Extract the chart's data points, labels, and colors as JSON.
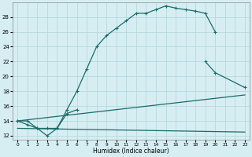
{
  "xlabel": "Humidex (Indice chaleur)",
  "bg_color": "#d6eef2",
  "grid_color": "#b8d8de",
  "line_color": "#1a6b6b",
  "xlim": [
    -0.5,
    23.5
  ],
  "ylim": [
    11.5,
    30
  ],
  "xticks": [
    0,
    1,
    2,
    3,
    4,
    5,
    6,
    7,
    8,
    9,
    10,
    11,
    12,
    13,
    14,
    15,
    16,
    17,
    18,
    19,
    20,
    21,
    22,
    23
  ],
  "yticks": [
    12,
    14,
    16,
    18,
    20,
    22,
    24,
    26,
    28
  ],
  "line1_x": [
    0,
    1,
    2,
    3,
    4,
    5,
    6,
    7,
    8,
    9,
    10,
    11,
    12,
    13,
    14,
    15,
    16,
    17,
    18,
    19,
    20
  ],
  "line1_y": [
    14,
    13.5,
    13,
    12,
    13,
    15.5,
    18,
    21,
    24,
    25.5,
    26.5,
    27.5,
    28.5,
    28.5,
    29,
    29.5,
    29.2,
    29,
    28.8,
    28.5,
    26
  ],
  "line2_x": [
    0,
    1,
    2,
    3,
    4,
    5,
    6,
    19,
    20,
    23
  ],
  "line2_y": [
    14,
    14,
    13,
    13,
    13,
    15,
    15.5,
    22,
    20.5,
    18.5
  ],
  "line3_x": [
    0,
    23
  ],
  "line3_y": [
    14,
    17.5
  ],
  "line4_x": [
    0,
    23
  ],
  "line4_y": [
    13,
    12.5
  ]
}
